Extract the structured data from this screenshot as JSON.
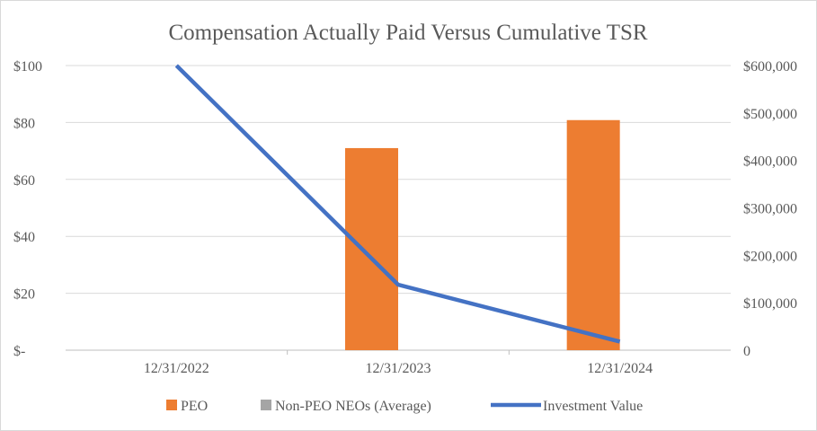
{
  "chart_data": {
    "type": "bar+line",
    "title": "Compensation Actually Paid Versus Cumulative TSR",
    "categories": [
      "12/31/2022",
      "12/31/2023",
      "12/31/2024"
    ],
    "left_axis": {
      "ticks": [
        0,
        20,
        40,
        60,
        80,
        100
      ],
      "tick_labels": [
        "$-",
        "$20",
        "$40",
        "$60",
        "$80",
        "$100"
      ],
      "ylim": [
        0,
        100
      ]
    },
    "right_axis": {
      "ticks": [
        0,
        100000,
        200000,
        300000,
        400000,
        500000,
        600000
      ],
      "tick_labels": [
        "0",
        "$100,000",
        "$200,000",
        "$300,000",
        "$400,000",
        "$500,000",
        "$600,000"
      ],
      "ylim": [
        0,
        600000
      ]
    },
    "series": [
      {
        "name": "PEO",
        "type": "bar",
        "axis": "right",
        "color": "#ED7D31",
        "values": [
          0,
          426000,
          485000
        ]
      },
      {
        "name": "Non-PEO NEOs (Average)",
        "type": "bar",
        "axis": "right",
        "color": "#A5A5A5",
        "values": [
          0,
          0,
          0
        ]
      },
      {
        "name": "Investment Value",
        "type": "line",
        "axis": "left",
        "color": "#4472C4",
        "values": [
          100,
          23,
          3
        ]
      }
    ],
    "grid": true,
    "legend": "bottom"
  }
}
